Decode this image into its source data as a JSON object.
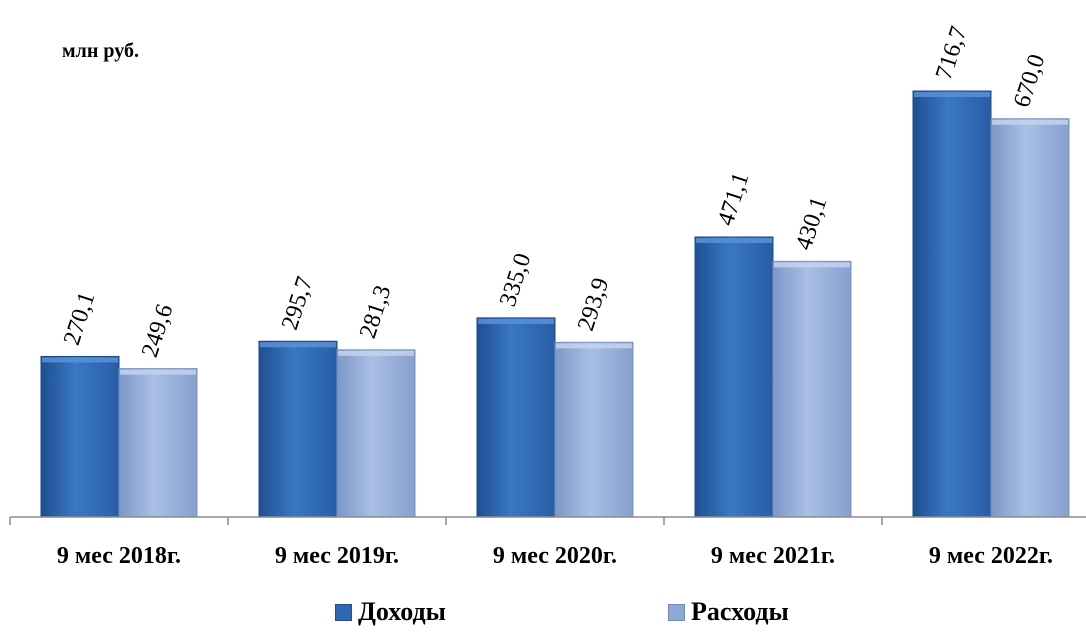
{
  "unit_label": "млн руб.",
  "chart_data": {
    "type": "bar",
    "ylabel": "млн руб.",
    "categories": [
      "9 мес 2018г.",
      "9 мес 2019г.",
      "9 мес 2020г.",
      "9 мес 2021г.",
      "9 мес 2022г."
    ],
    "series": [
      {
        "name": "Доходы",
        "values": [
          270.1,
          295.7,
          335.0,
          471.1,
          716.7
        ],
        "labels": [
          "270,1",
          "295,7",
          "335,0",
          "471,1",
          "716,7"
        ],
        "color": "#2e68b2"
      },
      {
        "name": "Расходы",
        "values": [
          249.6,
          281.3,
          293.9,
          430.1,
          670.0
        ],
        "labels": [
          "249,6",
          "281,3",
          "293,9",
          "430,1",
          "670,0"
        ],
        "color": "#8fa9d6"
      }
    ],
    "ylim": [
      0,
      800
    ],
    "grid": false,
    "legend_position": "bottom"
  }
}
